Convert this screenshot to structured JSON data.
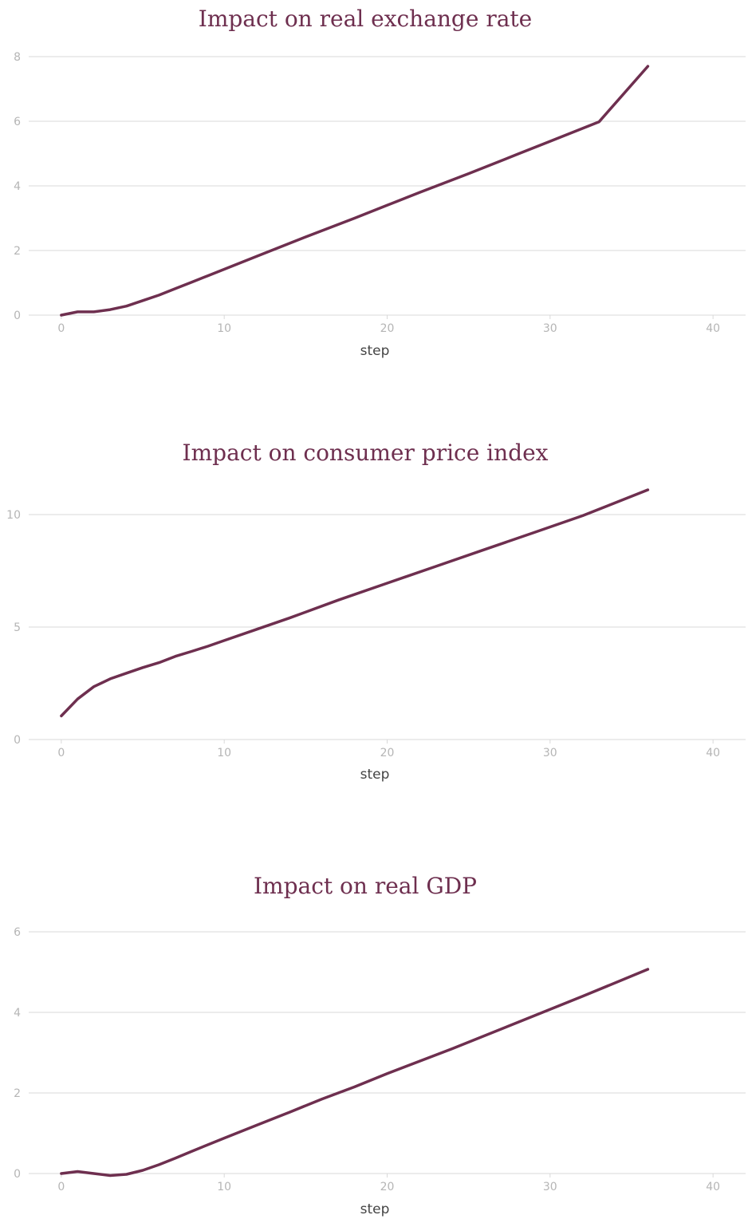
{
  "colors": {
    "title": "#6e2f4f",
    "series": "#6e2f4f",
    "grid": "#d9d9d9",
    "tick_label": "#b5b5b5",
    "axis_label": "#444444"
  },
  "chart_data": [
    {
      "type": "line",
      "title": "Impact on real exchange rate",
      "xlabel": "step",
      "ylabel": "",
      "xlim": [
        -2,
        42
      ],
      "ylim": [
        0,
        8
      ],
      "xticks": [
        0,
        10,
        20,
        30,
        40
      ],
      "yticks": [
        0,
        2,
        4,
        6,
        8
      ],
      "grid": "horizontal",
      "series": [
        {
          "x": [
            0,
            1,
            2,
            3,
            4,
            5,
            6,
            7,
            8,
            9,
            10,
            12,
            15,
            18,
            20,
            22,
            25,
            28,
            30,
            33,
            36
          ],
          "values": [
            0.0,
            0.1,
            0.1,
            0.17,
            0.28,
            0.45,
            0.62,
            0.82,
            1.02,
            1.22,
            1.42,
            1.82,
            2.42,
            3.0,
            3.4,
            3.8,
            4.38,
            4.98,
            5.38,
            5.98,
            7.7
          ]
        }
      ]
    },
    {
      "type": "line",
      "title": "Impact on consumer price index",
      "xlabel": "step",
      "ylabel": "",
      "xlim": [
        -2,
        42
      ],
      "ylim": [
        0,
        10
      ],
      "xticks": [
        0,
        10,
        20,
        30,
        40
      ],
      "yticks": [
        0,
        5,
        10
      ],
      "grid": "horizontal",
      "series": [
        {
          "x": [
            0,
            1,
            2,
            3,
            4,
            5,
            6,
            7,
            8,
            9,
            10,
            12,
            14,
            17,
            20,
            23,
            26,
            29,
            32,
            36
          ],
          "values": [
            1.05,
            1.8,
            2.35,
            2.7,
            2.95,
            3.2,
            3.42,
            3.7,
            3.92,
            4.15,
            4.4,
            4.9,
            5.4,
            6.2,
            6.95,
            7.7,
            8.45,
            9.2,
            9.95,
            11.1
          ]
        }
      ]
    },
    {
      "type": "line",
      "title": "Impact on real GDP",
      "xlabel": "step",
      "ylabel": "",
      "xlim": [
        -2,
        42
      ],
      "ylim": [
        0,
        6
      ],
      "xticks": [
        0,
        10,
        20,
        30,
        40
      ],
      "yticks": [
        0,
        2,
        4,
        6
      ],
      "grid": "horizontal",
      "series": [
        {
          "x": [
            0,
            1,
            2,
            3,
            4,
            5,
            6,
            7,
            8,
            10,
            12,
            14,
            16,
            18,
            20,
            24,
            28,
            32,
            36
          ],
          "values": [
            0.0,
            0.05,
            0.0,
            -0.05,
            -0.02,
            0.08,
            0.22,
            0.38,
            0.55,
            0.88,
            1.2,
            1.52,
            1.85,
            2.15,
            2.48,
            3.1,
            3.75,
            4.4,
            5.07
          ]
        }
      ]
    }
  ]
}
